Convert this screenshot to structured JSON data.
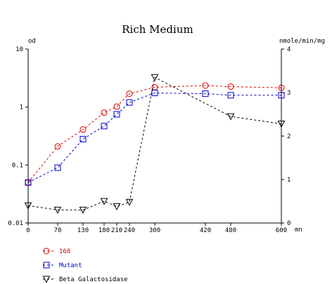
{
  "chart_data": {
    "type": "line",
    "title": "Rich Medium",
    "x_unit_label": "mn",
    "x_ticks": [
      0,
      70,
      130,
      180,
      210,
      240,
      300,
      420,
      480,
      600
    ],
    "xlim": [
      0,
      600
    ],
    "left_axis": {
      "label": "od",
      "scale": "log",
      "ylim": [
        0.01,
        10
      ],
      "ticks": [
        {
          "value": 0.01,
          "label": "0.01"
        },
        {
          "value": 0.1,
          "label": "0.1"
        },
        {
          "value": 1,
          "label": "1"
        },
        {
          "value": 10,
          "label": "10"
        }
      ]
    },
    "right_axis": {
      "label": "nmole/min/mg",
      "scale": "linear",
      "ylim": [
        0,
        4
      ],
      "ticks": [
        {
          "value": 0,
          "label": "0"
        },
        {
          "value": 1,
          "label": "1"
        },
        {
          "value": 2,
          "label": "2"
        },
        {
          "value": 3,
          "label": "3"
        },
        {
          "value": 4,
          "label": "4"
        }
      ]
    },
    "series": [
      {
        "name": "168",
        "axis": "left",
        "color": "#dd0000",
        "marker": "circle",
        "x": [
          0,
          70,
          130,
          180,
          210,
          240,
          300,
          420,
          480,
          600
        ],
        "y": [
          0.05,
          0.21,
          0.41,
          0.8,
          1.02,
          1.7,
          2.2,
          2.35,
          2.25,
          2.15
        ]
      },
      {
        "name": "Mutant",
        "axis": "left",
        "color": "#0000cc",
        "marker": "square",
        "x": [
          0,
          70,
          130,
          180,
          210,
          240,
          300,
          420,
          480,
          600
        ],
        "y": [
          0.05,
          0.09,
          0.28,
          0.47,
          0.75,
          1.2,
          1.75,
          1.7,
          1.6,
          1.6
        ]
      },
      {
        "name": "Beta Galactosidase",
        "axis": "right",
        "color": "#000000",
        "marker": "triangle-down",
        "x": [
          0,
          70,
          130,
          180,
          210,
          240,
          300,
          480,
          600
        ],
        "y": [
          0.4,
          0.3,
          0.3,
          0.5,
          0.38,
          0.48,
          3.35,
          2.45,
          2.28
        ]
      }
    ],
    "legend_position": "bottom-left",
    "grid": false
  }
}
